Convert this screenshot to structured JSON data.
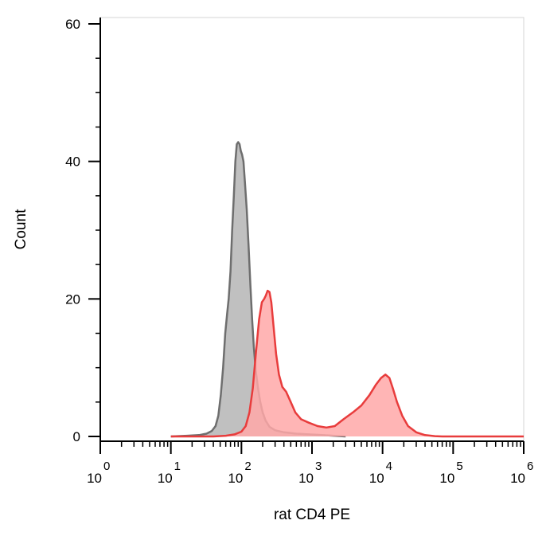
{
  "chart_data": {
    "type": "area",
    "title": "",
    "xlabel": "rat CD4 PE",
    "ylabel": "Count",
    "x_scale": "log",
    "xlim": [
      1,
      1000000
    ],
    "ylim": [
      0,
      60
    ],
    "grid": false,
    "legend": "none",
    "y_ticks": [
      {
        "value": 0,
        "label": "0"
      },
      {
        "value": 20,
        "label": "20"
      },
      {
        "value": 40,
        "label": "40"
      },
      {
        "value": 60,
        "label": "60"
      }
    ],
    "x_ticks": [
      {
        "base": "10",
        "exp": "0"
      },
      {
        "base": "10",
        "exp": "1"
      },
      {
        "base": "10",
        "exp": "2"
      },
      {
        "base": "10",
        "exp": "3"
      },
      {
        "base": "10",
        "exp": "4"
      },
      {
        "base": "10",
        "exp": "5"
      },
      {
        "base": "10",
        "exp": "6"
      }
    ],
    "series": [
      {
        "color": "#6e6e6e",
        "fill": "#c0c0c0",
        "points": [
          [
            10,
            0
          ],
          [
            17,
            0.1
          ],
          [
            25,
            0.2
          ],
          [
            32,
            0.4
          ],
          [
            38,
            0.8
          ],
          [
            43,
            1.5
          ],
          [
            47,
            3
          ],
          [
            51,
            6
          ],
          [
            55,
            10
          ],
          [
            59,
            15
          ],
          [
            63,
            18
          ],
          [
            66,
            20
          ],
          [
            70,
            24
          ],
          [
            74,
            30
          ],
          [
            78,
            35
          ],
          [
            82,
            40
          ],
          [
            86,
            42.5
          ],
          [
            90,
            42.8
          ],
          [
            94,
            42.5
          ],
          [
            98,
            41.5
          ],
          [
            102,
            41
          ],
          [
            107,
            40
          ],
          [
            112,
            37
          ],
          [
            119,
            33
          ],
          [
            126,
            28
          ],
          [
            134,
            22
          ],
          [
            142,
            17
          ],
          [
            150,
            13
          ],
          [
            160,
            9.5
          ],
          [
            172,
            7
          ],
          [
            185,
            5
          ],
          [
            200,
            3.5
          ],
          [
            220,
            2.3
          ],
          [
            250,
            1.4
          ],
          [
            300,
            0.9
          ],
          [
            400,
            0.6
          ],
          [
            600,
            0.4
          ],
          [
            900,
            0.3
          ],
          [
            1400,
            0.2
          ],
          [
            2000,
            0.1
          ],
          [
            3000,
            0
          ]
        ]
      },
      {
        "color": "#e83c3c",
        "fill": "#ffa8a8",
        "points": [
          [
            10,
            0
          ],
          [
            40,
            0
          ],
          [
            60,
            0.1
          ],
          [
            80,
            0.3
          ],
          [
            100,
            0.7
          ],
          [
            115,
            1.5
          ],
          [
            130,
            3.5
          ],
          [
            145,
            7
          ],
          [
            160,
            12
          ],
          [
            178,
            17
          ],
          [
            195,
            19.5
          ],
          [
            210,
            20
          ],
          [
            222,
            20.5
          ],
          [
            235,
            21.2
          ],
          [
            250,
            21
          ],
          [
            265,
            19.5
          ],
          [
            285,
            16
          ],
          [
            310,
            12
          ],
          [
            340,
            9
          ],
          [
            380,
            7.2
          ],
          [
            430,
            6.5
          ],
          [
            500,
            5
          ],
          [
            580,
            3.5
          ],
          [
            700,
            2.5
          ],
          [
            900,
            2
          ],
          [
            1200,
            1.5
          ],
          [
            1600,
            1.3
          ],
          [
            2100,
            1.5
          ],
          [
            2800,
            2.5
          ],
          [
            3800,
            3.5
          ],
          [
            5000,
            4.5
          ],
          [
            6500,
            6
          ],
          [
            8000,
            7.5
          ],
          [
            9500,
            8.5
          ],
          [
            11000,
            9
          ],
          [
            12500,
            8.5
          ],
          [
            14000,
            7
          ],
          [
            16000,
            5
          ],
          [
            19000,
            3
          ],
          [
            23000,
            1.5
          ],
          [
            30000,
            0.6
          ],
          [
            40000,
            0.2
          ],
          [
            55000,
            0.05
          ],
          [
            70000,
            0
          ],
          [
            1000000,
            0
          ]
        ]
      }
    ]
  }
}
